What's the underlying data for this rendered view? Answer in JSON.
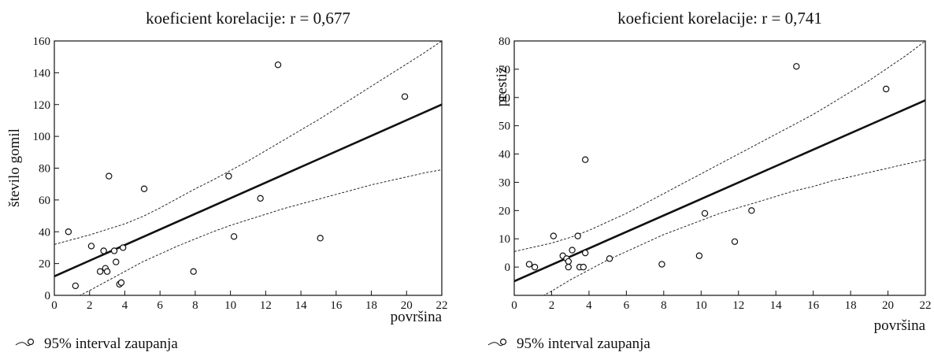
{
  "chart_data": [
    {
      "type": "scatter",
      "title": "koeficient korelacije: r = 0,677",
      "xlabel": "površina",
      "ylabel": "število gomil",
      "xlim": [
        0,
        22
      ],
      "ylim": [
        0,
        160
      ],
      "xticks": [
        0,
        2,
        4,
        6,
        8,
        10,
        12,
        14,
        16,
        18,
        20,
        22
      ],
      "yticks": [
        0,
        20,
        40,
        60,
        80,
        100,
        120,
        140,
        160
      ],
      "points": [
        [
          0.8,
          40
        ],
        [
          1.2,
          6
        ],
        [
          2.1,
          31
        ],
        [
          2.6,
          15
        ],
        [
          2.8,
          28
        ],
        [
          2.9,
          17
        ],
        [
          3.0,
          15
        ],
        [
          3.1,
          75
        ],
        [
          3.4,
          28
        ],
        [
          3.5,
          21
        ],
        [
          3.7,
          7
        ],
        [
          3.8,
          8
        ],
        [
          3.9,
          30
        ],
        [
          5.1,
          67
        ],
        [
          7.9,
          15
        ],
        [
          9.9,
          75
        ],
        [
          10.2,
          37
        ],
        [
          11.7,
          61
        ],
        [
          12.7,
          145
        ],
        [
          15.1,
          36
        ],
        [
          19.9,
          125
        ]
      ],
      "regression_line": {
        "x": [
          0,
          22
        ],
        "y": [
          12,
          120
        ]
      },
      "confidence_band": {
        "x": [
          0,
          1,
          2,
          3,
          4,
          5,
          6,
          7,
          8,
          9,
          10,
          11,
          12,
          13,
          14,
          15,
          16,
          17,
          18,
          19,
          20,
          21,
          22
        ],
        "upper": [
          32,
          35,
          38,
          41.5,
          45,
          49.5,
          55,
          61,
          67,
          72.5,
          78.5,
          84.5,
          91,
          97.5,
          104,
          110.5,
          117.5,
          124.5,
          131.5,
          138.5,
          145.5,
          152.5,
          160
        ],
        "lower": [
          -8,
          -2.5,
          3,
          9,
          15,
          21,
          26,
          31,
          35.5,
          40,
          44,
          47.5,
          51,
          54.5,
          57.5,
          60.5,
          63.5,
          66.5,
          69.5,
          72,
          74.5,
          77,
          79
        ]
      },
      "legend": {
        "label": "95% interval zaupanja",
        "placement": "bottom-left"
      },
      "grid": false
    },
    {
      "type": "scatter",
      "title": "koeficient korelacije: r = 0,741",
      "xlabel": "površina",
      "ylabel": "prestiž",
      "xlim": [
        0,
        22
      ],
      "ylim": [
        -10,
        80
      ],
      "xticks": [
        0,
        2,
        4,
        6,
        8,
        10,
        12,
        14,
        16,
        18,
        20,
        22
      ],
      "yticks": [
        0,
        10,
        20,
        30,
        40,
        50,
        60,
        70,
        80
      ],
      "points": [
        [
          0.8,
          1
        ],
        [
          1.1,
          0
        ],
        [
          2.1,
          11
        ],
        [
          2.6,
          4
        ],
        [
          2.8,
          3
        ],
        [
          2.9,
          0
        ],
        [
          2.9,
          2
        ],
        [
          3.1,
          6
        ],
        [
          3.4,
          11
        ],
        [
          3.5,
          0
        ],
        [
          3.7,
          0
        ],
        [
          3.8,
          5
        ],
        [
          3.8,
          38
        ],
        [
          5.1,
          3
        ],
        [
          7.9,
          1
        ],
        [
          9.9,
          4
        ],
        [
          10.2,
          19
        ],
        [
          11.8,
          9
        ],
        [
          12.7,
          20
        ],
        [
          15.1,
          71
        ],
        [
          19.9,
          63
        ]
      ],
      "regression_line": {
        "x": [
          0,
          22
        ],
        "y": [
          -5,
          59
        ]
      },
      "confidence_band": {
        "x": [
          0,
          1,
          2,
          3,
          4,
          5,
          6,
          7,
          8,
          9,
          10,
          11,
          12,
          13,
          14,
          15,
          16,
          17,
          18,
          19,
          20,
          21,
          22
        ],
        "upper": [
          5.5,
          7,
          8.5,
          10.5,
          13,
          16,
          19,
          22.5,
          26,
          29.5,
          33,
          36.5,
          40,
          43.5,
          47,
          50.5,
          54,
          58,
          62,
          66,
          70.5,
          75,
          80
        ],
        "lower": [
          -15,
          -12,
          -8.5,
          -4.5,
          -1,
          2.5,
          5.5,
          8.5,
          11.5,
          14,
          16.5,
          19,
          21,
          23,
          25,
          27,
          28.5,
          30.5,
          32,
          33.5,
          35,
          36.5,
          38
        ]
      },
      "legend": {
        "label": "95% interval zaupanja",
        "placement": "bottom-left"
      },
      "grid": false
    }
  ]
}
